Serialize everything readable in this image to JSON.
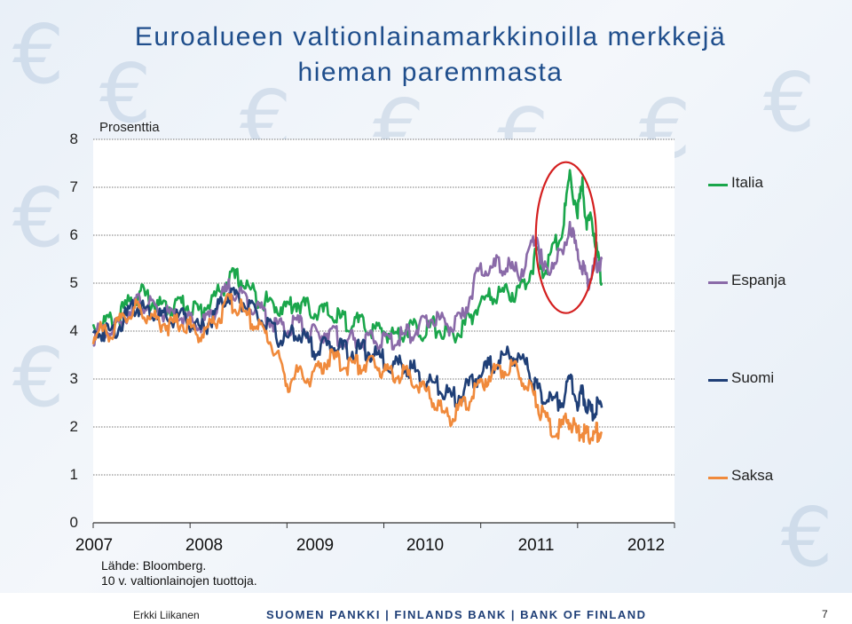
{
  "slide": {
    "title_line1": "Euroalueen valtionlainamarkkinoilla merkkejä",
    "title_line2": "hieman paremmasta",
    "source_line1": "Lähde: Bloomberg.",
    "source_line2": "10 v. valtionlainojen tuottoja.",
    "footer_author": "Erkki Liikanen",
    "footer_bank": "SUOMEN PANKKI | FINLANDS BANK | BANK OF FINLAND",
    "footer_page": "7"
  },
  "chart_data": {
    "type": "line",
    "title": "Euroalueen valtionlainamarkkinoilla merkkejä hieman paremmasta",
    "ylabel": "Prosenttia",
    "xlabel": "",
    "ylim": [
      0,
      8
    ],
    "xlim": [
      2007.0,
      2013.0
    ],
    "yticks": [
      "0",
      "1",
      "2",
      "3",
      "4",
      "5",
      "6",
      "7",
      "8"
    ],
    "xticks": [
      "2007",
      "2008",
      "2009",
      "2010",
      "2011",
      "2012"
    ],
    "grid": "horizontal dotted",
    "legend": "right",
    "annotation": "red ellipse around late-2011 peaks",
    "series": [
      {
        "name": "Italia",
        "color": "#1aa64b",
        "x": [
          2007.0,
          2007.1,
          2007.2,
          2007.3,
          2007.42,
          2007.5,
          2007.6,
          2007.7,
          2007.8,
          2007.9,
          2008.0,
          2008.1,
          2008.2,
          2008.3,
          2008.4,
          2008.5,
          2008.6,
          2008.7,
          2008.8,
          2008.9,
          2009.0,
          2009.1,
          2009.2,
          2009.3,
          2009.4,
          2009.5,
          2009.6,
          2009.7,
          2009.8,
          2009.9,
          2010.0,
          2010.1,
          2010.2,
          2010.3,
          2010.4,
          2010.5,
          2010.6,
          2010.7,
          2010.8,
          2010.9,
          2011.0,
          2011.1,
          2011.2,
          2011.3,
          2011.4,
          2011.5,
          2011.58,
          2011.65,
          2011.75,
          2011.85,
          2011.92,
          2012.0,
          2012.05,
          2012.1,
          2012.15,
          2012.2,
          2012.25
        ],
        "values": [
          4.1,
          4.2,
          4.2,
          4.4,
          4.7,
          4.8,
          4.6,
          4.5,
          4.5,
          4.6,
          4.5,
          4.4,
          4.6,
          4.8,
          5.1,
          5.1,
          4.9,
          4.7,
          4.6,
          4.5,
          4.5,
          4.6,
          4.5,
          4.4,
          4.4,
          4.3,
          4.2,
          4.2,
          4.1,
          4.0,
          4.0,
          3.9,
          4.0,
          4.1,
          4.0,
          4.1,
          4.0,
          3.9,
          4.0,
          4.3,
          4.6,
          4.7,
          4.8,
          4.8,
          4.8,
          5.2,
          5.6,
          5.2,
          5.7,
          6.2,
          7.2,
          6.5,
          7.0,
          6.2,
          6.3,
          5.6,
          5.0
        ]
      },
      {
        "name": "Espanja",
        "color": "#8a6aa8",
        "x": [
          2007.0,
          2007.1,
          2007.2,
          2007.3,
          2007.42,
          2007.5,
          2007.6,
          2007.7,
          2007.8,
          2007.9,
          2008.0,
          2008.1,
          2008.2,
          2008.3,
          2008.4,
          2008.5,
          2008.6,
          2008.7,
          2008.8,
          2008.9,
          2009.0,
          2009.1,
          2009.2,
          2009.3,
          2009.4,
          2009.5,
          2009.6,
          2009.7,
          2009.8,
          2009.9,
          2010.0,
          2010.1,
          2010.2,
          2010.3,
          2010.4,
          2010.5,
          2010.6,
          2010.7,
          2010.8,
          2010.9,
          2011.0,
          2011.1,
          2011.2,
          2011.3,
          2011.4,
          2011.5,
          2011.58,
          2011.65,
          2011.75,
          2011.85,
          2011.92,
          2012.0,
          2012.05,
          2012.1,
          2012.15,
          2012.2,
          2012.25
        ],
        "values": [
          3.9,
          4.0,
          4.0,
          4.2,
          4.6,
          4.6,
          4.5,
          4.4,
          4.3,
          4.3,
          4.2,
          4.1,
          4.3,
          4.6,
          4.9,
          4.8,
          4.6,
          4.5,
          4.3,
          4.1,
          4.0,
          4.2,
          4.0,
          3.9,
          4.0,
          3.9,
          3.8,
          3.8,
          3.8,
          3.8,
          3.8,
          3.8,
          3.9,
          4.0,
          4.1,
          4.3,
          4.2,
          4.1,
          4.2,
          4.8,
          5.3,
          5.3,
          5.4,
          5.3,
          5.2,
          5.6,
          6.0,
          5.2,
          5.5,
          5.6,
          6.3,
          5.5,
          5.4,
          5.0,
          5.2,
          5.4,
          5.5
        ]
      },
      {
        "name": "Suomi",
        "color": "#1f3f77",
        "x": [
          2007.0,
          2007.1,
          2007.2,
          2007.3,
          2007.42,
          2007.5,
          2007.6,
          2007.7,
          2007.8,
          2007.9,
          2008.0,
          2008.1,
          2008.2,
          2008.3,
          2008.4,
          2008.5,
          2008.6,
          2008.7,
          2008.8,
          2008.9,
          2009.0,
          2009.1,
          2009.2,
          2009.3,
          2009.4,
          2009.5,
          2009.6,
          2009.7,
          2009.8,
          2009.9,
          2010.0,
          2010.1,
          2010.2,
          2010.3,
          2010.4,
          2010.5,
          2010.6,
          2010.7,
          2010.8,
          2010.9,
          2011.0,
          2011.1,
          2011.2,
          2011.3,
          2011.4,
          2011.5,
          2011.58,
          2011.65,
          2011.75,
          2011.85,
          2011.92,
          2012.0,
          2012.05,
          2012.1,
          2012.15,
          2012.2,
          2012.25
        ],
        "values": [
          3.9,
          4.0,
          4.0,
          4.2,
          4.5,
          4.5,
          4.4,
          4.3,
          4.2,
          4.3,
          4.2,
          4.0,
          4.2,
          4.5,
          4.8,
          4.7,
          4.5,
          4.3,
          4.1,
          3.9,
          3.8,
          4.0,
          3.8,
          3.6,
          3.7,
          3.7,
          3.6,
          3.6,
          3.6,
          3.5,
          3.4,
          3.3,
          3.3,
          3.2,
          3.0,
          2.9,
          2.8,
          2.6,
          2.7,
          2.9,
          3.1,
          3.3,
          3.4,
          3.5,
          3.4,
          3.2,
          2.8,
          2.6,
          2.5,
          2.6,
          3.0,
          2.5,
          2.7,
          2.4,
          2.3,
          2.4,
          2.4
        ]
      },
      {
        "name": "Saksa",
        "color": "#f08a3c",
        "x": [
          2007.0,
          2007.1,
          2007.2,
          2007.3,
          2007.42,
          2007.5,
          2007.6,
          2007.7,
          2007.8,
          2007.9,
          2008.0,
          2008.1,
          2008.2,
          2008.3,
          2008.4,
          2008.5,
          2008.6,
          2008.7,
          2008.8,
          2008.9,
          2009.0,
          2009.1,
          2009.2,
          2009.3,
          2009.4,
          2009.5,
          2009.6,
          2009.7,
          2009.8,
          2009.9,
          2010.0,
          2010.1,
          2010.2,
          2010.3,
          2010.4,
          2010.5,
          2010.6,
          2010.7,
          2010.8,
          2010.9,
          2011.0,
          2011.1,
          2011.2,
          2011.3,
          2011.4,
          2011.5,
          2011.58,
          2011.65,
          2011.75,
          2011.85,
          2011.92,
          2012.0,
          2012.05,
          2012.1,
          2012.15,
          2012.2,
          2012.25
        ],
        "values": [
          3.9,
          4.0,
          4.0,
          4.2,
          4.5,
          4.4,
          4.3,
          4.2,
          4.1,
          4.2,
          4.1,
          3.9,
          4.1,
          4.3,
          4.6,
          4.5,
          4.3,
          4.1,
          3.9,
          3.5,
          2.9,
          3.1,
          3.0,
          3.1,
          3.4,
          3.4,
          3.3,
          3.3,
          3.3,
          3.3,
          3.2,
          3.1,
          3.1,
          3.0,
          2.8,
          2.6,
          2.3,
          2.2,
          2.4,
          2.6,
          2.9,
          3.1,
          3.2,
          3.3,
          3.1,
          2.9,
          2.5,
          2.2,
          1.9,
          2.0,
          2.2,
          1.8,
          1.9,
          1.8,
          1.8,
          1.9,
          1.9
        ]
      }
    ]
  }
}
